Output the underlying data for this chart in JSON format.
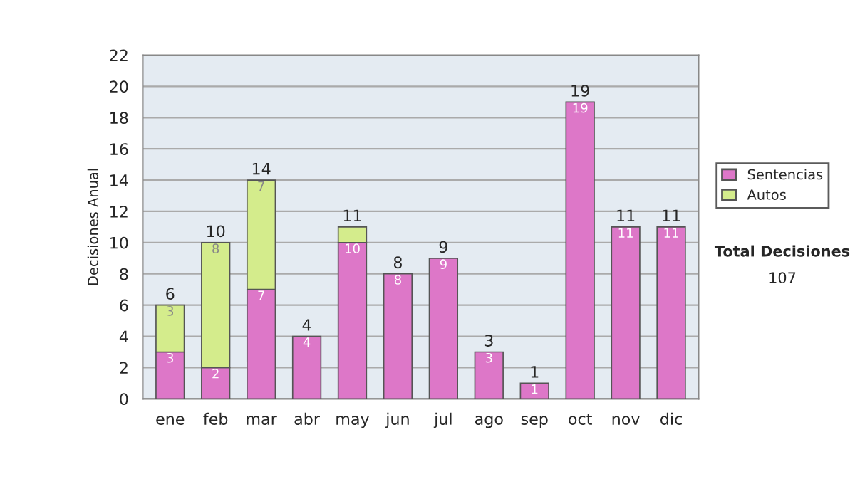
{
  "chart_data": {
    "type": "bar",
    "stacked": true,
    "ylabel": "Decisiones Anual",
    "categories": [
      "ene",
      "feb",
      "mar",
      "abr",
      "may",
      "jun",
      "jul",
      "ago",
      "sep",
      "oct",
      "nov",
      "dic"
    ],
    "series": [
      {
        "name": "Sentencias",
        "color": "#dd77c8",
        "values": [
          3,
          2,
          7,
          4,
          10,
          8,
          9,
          3,
          1,
          19,
          11,
          11
        ],
        "value_labels": [
          "3",
          "2",
          "7",
          "4",
          "10",
          "8",
          "9",
          "3",
          "1",
          "19",
          "11",
          "11"
        ]
      },
      {
        "name": "Autos",
        "color": "#d4ec8c",
        "values": [
          3,
          8,
          7,
          null,
          1,
          null,
          null,
          null,
          null,
          null,
          null,
          null
        ],
        "value_labels": [
          "3",
          "8",
          "7",
          null,
          null,
          null,
          null,
          null,
          null,
          null,
          null,
          null
        ]
      }
    ],
    "totals": [
      "6",
      "10",
      "14",
      "4",
      "11",
      "8",
      "9",
      "3",
      "1",
      "19",
      "11",
      "11"
    ],
    "ylim": [
      0,
      22
    ],
    "yticks": [
      0,
      2,
      4,
      6,
      8,
      10,
      12,
      14,
      16,
      18,
      20,
      22
    ],
    "grid": "y",
    "legend": "right",
    "annotations": [
      "Total Decisiones",
      "107"
    ]
  }
}
